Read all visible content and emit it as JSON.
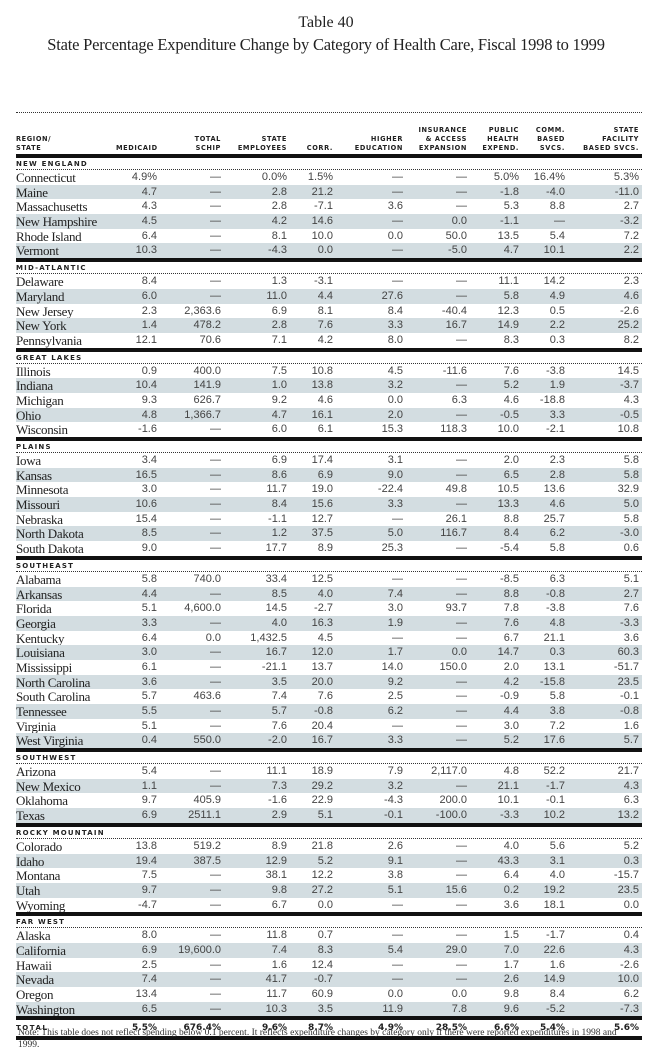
{
  "title": "Table 40",
  "subtitle": "State Percentage Expenditure Change by Category of Health Care, Fiscal 1998 to 1999",
  "columns": [
    "REGION/\nSTATE",
    "MEDICAID",
    "TOTAL\nSCHIP",
    "STATE\nEMPLOYEES",
    "CORR.",
    "HIGHER\nEDUCATION",
    "INSURANCE\n& ACCESS\nEXPANSION",
    "PUBLIC\nHEALTH\nEXPEND.",
    "COMM.\nBASED\nSVCS.",
    "STATE\nFACILITY\nBASED SVCS."
  ],
  "regions": [
    {
      "name": "NEW ENGLAND",
      "rows": [
        [
          "Connecticut",
          "4.9%",
          "—",
          "0.0%",
          "1.5%",
          "—",
          "—",
          "5.0%",
          "16.4%",
          "5.3%"
        ],
        [
          "Maine",
          "4.7",
          "—",
          "2.8",
          "21.2",
          "—",
          "—",
          "-1.8",
          "-4.0",
          "-11.0"
        ],
        [
          "Massachusetts",
          "4.3",
          "—",
          "2.8",
          "-7.1",
          "3.6",
          "—",
          "5.3",
          "8.8",
          "2.7"
        ],
        [
          "New Hampshire",
          "4.5",
          "—",
          "4.2",
          "14.6",
          "—",
          "0.0",
          "-1.1",
          "—",
          "-3.2"
        ],
        [
          "Rhode Island",
          "6.4",
          "—",
          "8.1",
          "10.0",
          "0.0",
          "50.0",
          "13.5",
          "5.4",
          "7.2"
        ],
        [
          "Vermont",
          "10.3",
          "—",
          "-4.3",
          "0.0",
          "—",
          "-5.0",
          "4.7",
          "10.1",
          "2.2"
        ]
      ]
    },
    {
      "name": "MID-ATLANTIC",
      "rows": [
        [
          "Delaware",
          "8.4",
          "—",
          "1.3",
          "-3.1",
          "—",
          "—",
          "11.1",
          "14.2",
          "2.3"
        ],
        [
          "Maryland",
          "6.0",
          "—",
          "11.0",
          "4.4",
          "27.6",
          "—",
          "5.8",
          "4.9",
          "4.6"
        ],
        [
          "New Jersey",
          "2.3",
          "2,363.6",
          "6.9",
          "8.1",
          "8.4",
          "-40.4",
          "12.3",
          "0.5",
          "-2.6"
        ],
        [
          "New York",
          "1.4",
          "478.2",
          "2.8",
          "7.6",
          "3.3",
          "16.7",
          "14.9",
          "2.2",
          "25.2"
        ],
        [
          "Pennsylvania",
          "12.1",
          "70.6",
          "7.1",
          "4.2",
          "8.0",
          "—",
          "8.3",
          "0.3",
          "8.2"
        ]
      ]
    },
    {
      "name": "GREAT LAKES",
      "rows": [
        [
          "Illinois",
          "0.9",
          "400.0",
          "7.5",
          "10.8",
          "4.5",
          "-11.6",
          "7.6",
          "-3.8",
          "14.5"
        ],
        [
          "Indiana",
          "10.4",
          "141.9",
          "1.0",
          "13.8",
          "3.2",
          "—",
          "5.2",
          "1.9",
          "-3.7"
        ],
        [
          "Michigan",
          "9.3",
          "626.7",
          "9.2",
          "4.6",
          "0.0",
          "6.3",
          "4.6",
          "-18.8",
          "4.3"
        ],
        [
          "Ohio",
          "4.8",
          "1,366.7",
          "4.7",
          "16.1",
          "2.0",
          "—",
          "-0.5",
          "3.3",
          "-0.5"
        ],
        [
          "Wisconsin",
          "-1.6",
          "—",
          "6.0",
          "6.1",
          "15.3",
          "118.3",
          "10.0",
          "-2.1",
          "10.8"
        ]
      ]
    },
    {
      "name": "PLAINS",
      "rows": [
        [
          "Iowa",
          "3.4",
          "—",
          "6.9",
          "17.4",
          "3.1",
          "—",
          "2.0",
          "2.3",
          "5.8"
        ],
        [
          "Kansas",
          "16.5",
          "—",
          "8.6",
          "6.9",
          "9.0",
          "—",
          "6.5",
          "2.8",
          "5.8"
        ],
        [
          "Minnesota",
          "3.0",
          "—",
          "11.7",
          "19.0",
          "-22.4",
          "49.8",
          "10.5",
          "13.6",
          "32.9"
        ],
        [
          "Missouri",
          "10.6",
          "—",
          "8.4",
          "15.6",
          "3.3",
          "—",
          "13.3",
          "4.6",
          "5.0"
        ],
        [
          "Nebraska",
          "15.4",
          "—",
          "-1.1",
          "12.7",
          "—",
          "26.1",
          "8.8",
          "25.7",
          "5.8"
        ],
        [
          "North Dakota",
          "8.5",
          "—",
          "1.2",
          "37.5",
          "5.0",
          "116.7",
          "8.4",
          "6.2",
          "-3.0"
        ],
        [
          "South Dakota",
          "9.0",
          "—",
          "17.7",
          "8.9",
          "25.3",
          "—",
          "-5.4",
          "5.8",
          "0.6"
        ]
      ]
    },
    {
      "name": "SOUTHEAST",
      "rows": [
        [
          "Alabama",
          "5.8",
          "740.0",
          "33.4",
          "12.5",
          "—",
          "—",
          "-8.5",
          "6.3",
          "5.1"
        ],
        [
          "Arkansas",
          "4.4",
          "—",
          "8.5",
          "4.0",
          "7.4",
          "—",
          "8.8",
          "-0.8",
          "2.7"
        ],
        [
          "Florida",
          "5.1",
          "4,600.0",
          "14.5",
          "-2.7",
          "3.0",
          "93.7",
          "7.8",
          "-3.8",
          "7.6"
        ],
        [
          "Georgia",
          "3.3",
          "—",
          "4.0",
          "16.3",
          "1.9",
          "—",
          "7.6",
          "4.8",
          "-3.3"
        ],
        [
          "Kentucky",
          "6.4",
          "0.0",
          "1,432.5",
          "4.5",
          "—",
          "—",
          "6.7",
          "21.1",
          "3.6"
        ],
        [
          "Louisiana",
          "3.0",
          "—",
          "16.7",
          "12.0",
          "1.7",
          "0.0",
          "14.7",
          "0.3",
          "60.3"
        ],
        [
          "Mississippi",
          "6.1",
          "—",
          "-21.1",
          "13.7",
          "14.0",
          "150.0",
          "2.0",
          "13.1",
          "-51.7"
        ],
        [
          "North Carolina",
          "3.6",
          "—",
          "3.5",
          "20.0",
          "9.2",
          "—",
          "4.2",
          "-15.8",
          "23.5"
        ],
        [
          "South Carolina",
          "5.7",
          "463.6",
          "7.4",
          "7.6",
          "2.5",
          "—",
          "-0.9",
          "5.8",
          "-0.1"
        ],
        [
          "Tennessee",
          "5.5",
          "—",
          "5.7",
          "-0.8",
          "6.2",
          "—",
          "4.4",
          "3.8",
          "-0.8"
        ],
        [
          "Virginia",
          "5.1",
          "—",
          "7.6",
          "20.4",
          "—",
          "—",
          "3.0",
          "7.2",
          "1.6"
        ],
        [
          "West Virginia",
          "0.4",
          "550.0",
          "-2.0",
          "16.7",
          "3.3",
          "—",
          "5.2",
          "17.6",
          "5.7"
        ]
      ]
    },
    {
      "name": "SOUTHWEST",
      "rows": [
        [
          "Arizona",
          "5.4",
          "—",
          "11.1",
          "18.9",
          "7.9",
          "2,117.0",
          "4.8",
          "52.2",
          "21.7"
        ],
        [
          "New Mexico",
          "1.1",
          "—",
          "7.3",
          "29.2",
          "3.2",
          "—",
          "21.1",
          "-1.7",
          "4.3"
        ],
        [
          "Oklahoma",
          "9.7",
          "405.9",
          "-1.6",
          "22.9",
          "-4.3",
          "200.0",
          "10.1",
          "-0.1",
          "6.3"
        ],
        [
          "Texas",
          "6.9",
          "2511.1",
          "2.9",
          "5.1",
          "-0.1",
          "-100.0",
          "-3.3",
          "10.2",
          "13.2"
        ]
      ]
    },
    {
      "name": "ROCKY MOUNTAIN",
      "rows": [
        [
          "Colorado",
          "13.8",
          "519.2",
          "8.9",
          "21.8",
          "2.6",
          "—",
          "4.0",
          "5.6",
          "5.2"
        ],
        [
          "Idaho",
          "19.4",
          "387.5",
          "12.9",
          "5.2",
          "9.1",
          "—",
          "43.3",
          "3.1",
          "0.3"
        ],
        [
          "Montana",
          "7.5",
          "—",
          "38.1",
          "12.2",
          "3.8",
          "—",
          "6.4",
          "4.0",
          "-15.7"
        ],
        [
          "Utah",
          "9.7",
          "—",
          "9.8",
          "27.2",
          "5.1",
          "15.6",
          "0.2",
          "19.2",
          "23.5"
        ],
        [
          "Wyoming",
          "-4.7",
          "—",
          "6.7",
          "0.0",
          "—",
          "—",
          "3.6",
          "18.1",
          "0.0"
        ]
      ]
    },
    {
      "name": "FAR WEST",
      "rows": [
        [
          "Alaska",
          "8.0",
          "—",
          "11.8",
          "0.7",
          "—",
          "—",
          "1.5",
          "-1.7",
          "0.4"
        ],
        [
          "California",
          "6.9",
          "19,600.0",
          "7.4",
          "8.3",
          "5.4",
          "29.0",
          "7.0",
          "22.6",
          "4.3"
        ],
        [
          "Hawaii",
          "2.5",
          "—",
          "1.6",
          "12.4",
          "—",
          "—",
          "1.7",
          "1.6",
          "-2.6"
        ],
        [
          "Nevada",
          "7.4",
          "—",
          "41.7",
          "-0.7",
          "—",
          "—",
          "2.6",
          "14.9",
          "10.0"
        ],
        [
          "Oregon",
          "13.4",
          "—",
          "11.7",
          "60.9",
          "0.0",
          "0.0",
          "9.8",
          "8.4",
          "6.2"
        ],
        [
          "Washington",
          "6.5",
          "—",
          "10.3",
          "3.5",
          "11.9",
          "7.8",
          "9.6",
          "-5.2",
          "-7.3"
        ]
      ]
    }
  ],
  "total": [
    "TOTAL",
    "5.5%",
    "676.4%",
    "9.6%",
    "8.7%",
    "4.9%",
    "28.5%",
    "6.6%",
    "5.4%",
    "5.6%"
  ],
  "note": "Note: This table does not reflect spending below 0.1 percent. It reflects expenditure changes by category only if there were reported expenditures in 1998 and 1999.",
  "colors": {
    "row_shade": "#d3dde1",
    "rule": "#111111"
  }
}
